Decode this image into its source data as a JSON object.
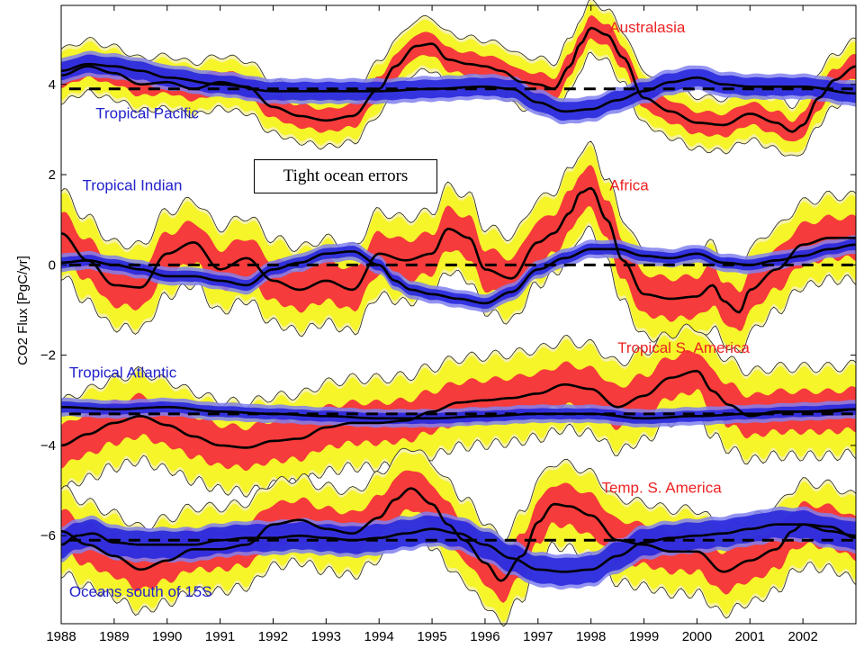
{
  "chart_data": {
    "type": "line",
    "ylabel": "CO2 Flux [PgC/yr]",
    "xlabel": "",
    "xlim": [
      1988.0,
      2003.0
    ],
    "ylim": [
      -7.95,
      5.75
    ],
    "x_ticks": [
      1988,
      1989,
      1990,
      1991,
      1992,
      1993,
      1994,
      1995,
      1996,
      1997,
      1998,
      1999,
      2000,
      2001,
      2002
    ],
    "y_ticks": [
      4,
      2,
      0,
      -2,
      -4,
      -6
    ],
    "y_tick_labels": [
      "4",
      "2",
      "0",
      "−2",
      "−4",
      "−6"
    ],
    "annotation": "Tight ocean errors",
    "colors": {
      "land_band_inner": "#f53b3b",
      "land_band_outer": "#f5f52a",
      "ocean_band": "#8080ee",
      "ocean_band_core": "#2222dd",
      "land_label": "#ee2222",
      "ocean_label": "#2222cc",
      "series_line": "#000000"
    },
    "panels": [
      {
        "offset": 3.9,
        "land": {
          "name": "Australasia",
          "x": [
            1988.0,
            1988.5,
            1989.0,
            1989.5,
            1990.0,
            1990.5,
            1991.0,
            1991.5,
            1992.0,
            1992.5,
            1993.0,
            1993.5,
            1994.0,
            1994.3,
            1994.7,
            1995.0,
            1995.3,
            1995.7,
            1996.0,
            1996.3,
            1996.7,
            1997.0,
            1997.3,
            1997.6,
            1997.8,
            1998.0,
            1998.3,
            1998.6,
            1999.0,
            1999.5,
            2000.0,
            2000.5,
            2001.0,
            2001.5,
            2001.8,
            2002.0,
            2002.3,
            2002.6,
            2003.0
          ],
          "y": [
            4.2,
            4.4,
            4.25,
            4.0,
            4.05,
            3.9,
            4.05,
            3.95,
            3.5,
            3.3,
            3.2,
            3.3,
            3.9,
            4.4,
            4.85,
            4.9,
            4.55,
            4.45,
            4.4,
            4.3,
            4.05,
            4.0,
            3.9,
            4.4,
            4.9,
            5.25,
            5.1,
            4.6,
            3.7,
            3.4,
            3.15,
            3.1,
            3.35,
            3.15,
            2.95,
            3.1,
            3.7,
            4.1,
            4.4
          ],
          "w_inner": 0.25,
          "w_outer": 0.5
        },
        "ocean": {
          "name": "Tropical Pacific",
          "x": [
            1988.0,
            1988.5,
            1989.0,
            1989.5,
            1990.0,
            1991.0,
            1992.0,
            1993.0,
            1994.0,
            1995.0,
            1996.0,
            1996.5,
            1997.0,
            1997.5,
            1998.0,
            1998.5,
            1999.0,
            1999.5,
            2000.0,
            2000.5,
            2001.0,
            2002.0,
            2003.0
          ],
          "y": [
            4.3,
            4.45,
            4.4,
            4.3,
            4.15,
            4.0,
            3.85,
            3.85,
            3.85,
            3.9,
            3.95,
            3.9,
            3.6,
            3.4,
            3.45,
            3.65,
            3.85,
            4.05,
            4.15,
            4.0,
            3.95,
            3.95,
            3.8
          ],
          "w": 0.2
        }
      },
      {
        "offset": 0.0,
        "land": {
          "name": "Africa",
          "x": [
            1988.0,
            1988.5,
            1989.0,
            1989.5,
            1990.0,
            1990.5,
            1991.0,
            1991.5,
            1992.0,
            1992.5,
            1993.0,
            1993.5,
            1994.0,
            1994.5,
            1995.0,
            1995.3,
            1995.7,
            1996.0,
            1996.5,
            1997.0,
            1997.3,
            1997.6,
            1997.8,
            1998.0,
            1998.3,
            1998.6,
            1999.0,
            1999.5,
            2000.0,
            2000.3,
            2000.5,
            2000.8,
            2001.0,
            2001.5,
            2002.0,
            2002.5,
            2003.0
          ],
          "y": [
            0.7,
            0.1,
            -0.45,
            -0.5,
            0.25,
            0.5,
            -0.1,
            0.15,
            -0.35,
            -0.55,
            -0.35,
            -0.55,
            0.25,
            0.1,
            0.25,
            0.8,
            0.6,
            -0.1,
            -0.3,
            0.5,
            0.7,
            1.15,
            1.6,
            1.7,
            1.0,
            0.1,
            -0.65,
            -0.75,
            -0.7,
            -0.45,
            -0.8,
            -1.05,
            -0.55,
            -0.1,
            0.45,
            0.6,
            0.6
          ],
          "w_inner": 0.45,
          "w_outer": 0.85
        },
        "ocean": {
          "name": "Tropical Indian",
          "x": [
            1988.0,
            1988.5,
            1989.0,
            1989.5,
            1990.0,
            1990.5,
            1991.0,
            1991.5,
            1992.0,
            1992.5,
            1993.0,
            1993.5,
            1994.0,
            1994.3,
            1994.6,
            1995.0,
            1995.5,
            1996.0,
            1996.5,
            1997.0,
            1997.5,
            1998.0,
            1998.5,
            1999.0,
            1999.5,
            2000.0,
            2000.5,
            2001.0,
            2001.5,
            2002.0,
            2002.5,
            2003.0
          ],
          "y": [
            0.05,
            0.1,
            0.0,
            -0.1,
            -0.25,
            -0.25,
            -0.35,
            -0.45,
            -0.1,
            0.05,
            0.25,
            0.3,
            0.0,
            -0.35,
            -0.55,
            -0.65,
            -0.75,
            -0.85,
            -0.6,
            -0.1,
            0.15,
            0.35,
            0.35,
            0.2,
            0.15,
            0.25,
            0.05,
            0.0,
            0.1,
            0.2,
            0.35,
            0.45
          ],
          "w": 0.12
        }
      },
      {
        "offset": -3.3,
        "land": {
          "name": "Tropical S. America",
          "x": [
            1988.0,
            1988.5,
            1989.0,
            1989.5,
            1990.0,
            1990.5,
            1991.0,
            1991.5,
            1992.0,
            1992.5,
            1993.0,
            1993.5,
            1994.0,
            1994.5,
            1995.0,
            1995.5,
            1996.0,
            1996.5,
            1997.0,
            1997.5,
            1998.0,
            1998.5,
            1999.0,
            1999.5,
            2000.0,
            2000.3,
            2000.6,
            2001.0,
            2001.5,
            2002.0,
            2002.5,
            2003.0
          ],
          "y": [
            -4.0,
            -3.75,
            -3.5,
            -3.35,
            -3.55,
            -3.8,
            -4.0,
            -4.05,
            -3.9,
            -3.85,
            -3.6,
            -3.5,
            -3.5,
            -3.45,
            -3.25,
            -3.05,
            -3.0,
            -2.95,
            -2.85,
            -2.65,
            -2.75,
            -3.15,
            -2.9,
            -2.5,
            -2.35,
            -2.8,
            -3.1,
            -3.35,
            -3.25,
            -3.25,
            -3.25,
            -3.2
          ],
          "w_inner": 0.45,
          "w_outer": 0.9
        },
        "ocean": {
          "name": "Tropical Atlantic",
          "x": [
            1988.0,
            1989.0,
            1990.0,
            1991.0,
            1992.0,
            1993.0,
            1994.0,
            1995.0,
            1996.0,
            1997.0,
            1998.0,
            1999.0,
            2000.0,
            2001.0,
            2002.0,
            2003.0
          ],
          "y": [
            -3.15,
            -3.2,
            -3.15,
            -3.25,
            -3.3,
            -3.35,
            -3.4,
            -3.4,
            -3.35,
            -3.3,
            -3.3,
            -3.4,
            -3.35,
            -3.3,
            -3.25,
            -3.2
          ],
          "w": 0.12
        }
      },
      {
        "offset": -6.1,
        "land": {
          "name": "Temp. S. America",
          "x": [
            1988.0,
            1988.5,
            1989.0,
            1989.5,
            1990.0,
            1990.5,
            1991.0,
            1991.5,
            1992.0,
            1992.5,
            1993.0,
            1993.5,
            1994.0,
            1994.3,
            1994.6,
            1995.0,
            1995.3,
            1995.6,
            1996.0,
            1996.3,
            1996.7,
            1997.0,
            1997.3,
            1997.6,
            1998.0,
            1998.5,
            1999.0,
            1999.5,
            2000.0,
            2000.5,
            2001.0,
            2001.5,
            2001.8,
            2002.0,
            2002.5,
            2003.0
          ],
          "y": [
            -5.9,
            -6.2,
            -6.45,
            -6.75,
            -6.55,
            -6.3,
            -6.3,
            -6.2,
            -5.75,
            -5.65,
            -5.85,
            -5.95,
            -5.6,
            -5.2,
            -4.95,
            -5.3,
            -5.75,
            -6.1,
            -6.6,
            -7.0,
            -6.45,
            -5.7,
            -5.3,
            -5.35,
            -5.55,
            -6.1,
            -6.2,
            -6.35,
            -6.35,
            -6.8,
            -6.55,
            -6.3,
            -5.9,
            -5.75,
            -5.8,
            -6.05
          ],
          "w_inner": 0.45,
          "w_outer": 0.85
        },
        "ocean": {
          "name": "Oceans south of 15S",
          "x": [
            1988.0,
            1988.3,
            1988.6,
            1989.0,
            1989.5,
            1990.0,
            1990.5,
            1991.0,
            1991.5,
            1992.0,
            1992.5,
            1993.0,
            1993.5,
            1994.0,
            1994.5,
            1995.0,
            1995.5,
            1996.0,
            1996.5,
            1997.0,
            1997.5,
            1998.0,
            1998.5,
            1999.0,
            1999.5,
            2000.0,
            2000.5,
            2001.0,
            2001.5,
            2002.0,
            2002.5,
            2003.0
          ],
          "y": [
            -6.2,
            -6.0,
            -5.95,
            -6.15,
            -6.2,
            -6.2,
            -6.2,
            -6.1,
            -6.05,
            -6.05,
            -6.0,
            -6.05,
            -6.1,
            -6.05,
            -5.95,
            -5.85,
            -5.95,
            -6.2,
            -6.5,
            -6.75,
            -6.8,
            -6.75,
            -6.45,
            -6.15,
            -6.05,
            -6.0,
            -5.95,
            -5.85,
            -5.75,
            -5.75,
            -5.9,
            -6.0
          ],
          "w": 0.3
        }
      }
    ],
    "region_labels": [
      {
        "text": "Australasia",
        "kind": "land",
        "x": 1998.35,
        "y": 5.15
      },
      {
        "text": "Tropical Pacific",
        "kind": "ocean",
        "x": 1988.65,
        "y": 3.25
      },
      {
        "text": "Africa",
        "kind": "land",
        "x": 1998.35,
        "y": 1.65
      },
      {
        "text": "Tropical Indian",
        "kind": "ocean",
        "x": 1988.4,
        "y": 1.65
      },
      {
        "text": "Tropical S. America",
        "kind": "land",
        "x": 1998.5,
        "y": -1.95
      },
      {
        "text": "Tropical Atlantic",
        "kind": "ocean",
        "x": 1988.15,
        "y": -2.5
      },
      {
        "text": "Temp. S. America",
        "kind": "land",
        "x": 1998.2,
        "y": -5.05
      },
      {
        "text": "Oceans south of 15S",
        "kind": "ocean",
        "x": 1988.15,
        "y": -7.35
      }
    ]
  }
}
